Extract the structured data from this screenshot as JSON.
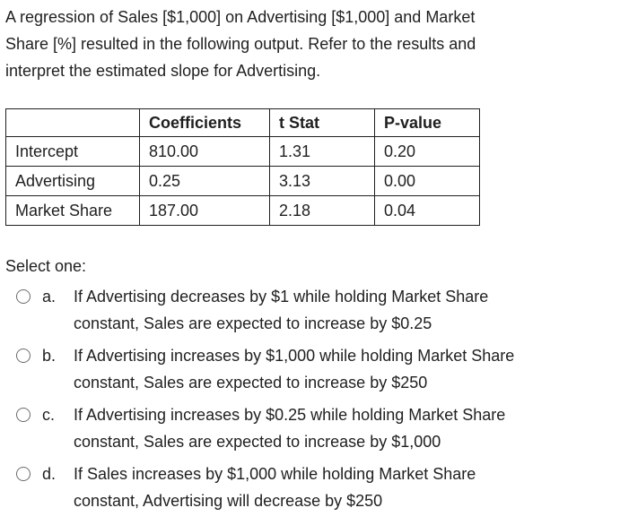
{
  "question": {
    "lines": [
      "A regression of Sales [$1,000] on Advertising [$1,000] and Market",
      "Share [%] resulted in the following output.  Refer to the results and",
      "interpret the estimated slope for Advertising."
    ]
  },
  "table": {
    "headers": [
      "",
      "Coefficients",
      "t Stat",
      "P-value"
    ],
    "rows": [
      {
        "label": "Intercept",
        "coef": "810.00",
        "t": "1.31",
        "p": "0.20"
      },
      {
        "label": "Advertising",
        "coef": "0.25",
        "t": "3.13",
        "p": "0.00"
      },
      {
        "label": "Market Share",
        "coef": "187.00",
        "t": "2.18",
        "p": "0.04"
      }
    ]
  },
  "select_one": "Select one:",
  "options": [
    {
      "letter": "a.",
      "lines": [
        "If Advertising decreases by $1 while holding Market Share",
        "constant, Sales are expected to increase by $0.25"
      ]
    },
    {
      "letter": "b.",
      "lines": [
        "If Advertising increases by $1,000 while holding Market Share",
        "constant, Sales are expected to increase by $250"
      ]
    },
    {
      "letter": "c.",
      "lines": [
        "If Advertising increases by $0.25 while holding Market Share",
        "constant, Sales are expected to increase by $1,000"
      ]
    },
    {
      "letter": "d.",
      "lines": [
        "If Sales increases by $1,000 while holding Market Share",
        "constant, Advertising will decrease by $250"
      ]
    }
  ],
  "colors": {
    "text": "#1f1f1f",
    "radio_border": "#6b6b6b",
    "background": "#ffffff"
  }
}
